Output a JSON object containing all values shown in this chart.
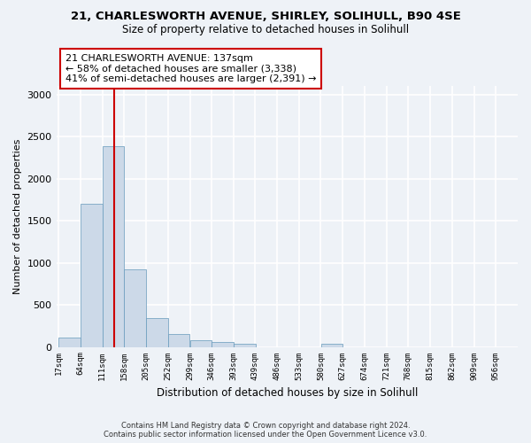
{
  "title": "21, CHARLESWORTH AVENUE, SHIRLEY, SOLIHULL, B90 4SE",
  "subtitle": "Size of property relative to detached houses in Solihull",
  "xlabel": "Distribution of detached houses by size in Solihull",
  "ylabel": "Number of detached properties",
  "footer_line1": "Contains HM Land Registry data © Crown copyright and database right 2024.",
  "footer_line2": "Contains public sector information licensed under the Open Government Licence v3.0.",
  "annotation_line1": "21 CHARLESWORTH AVENUE: 137sqm",
  "annotation_line2": "← 58% of detached houses are smaller (3,338)",
  "annotation_line3": "41% of semi-detached houses are larger (2,391) →",
  "bar_color": "#ccd9e8",
  "bar_edge_color": "#6699bb",
  "red_line_color": "#cc0000",
  "red_line_x": 137,
  "bin_edges": [
    17,
    64,
    111,
    158,
    205,
    252,
    299,
    346,
    393,
    439,
    486,
    533,
    580,
    627,
    674,
    721,
    768,
    815,
    862,
    909,
    956
  ],
  "bar_heights": [
    110,
    1700,
    2380,
    920,
    340,
    150,
    80,
    55,
    40,
    0,
    0,
    0,
    35,
    0,
    0,
    0,
    0,
    0,
    0,
    0
  ],
  "ylim": [
    0,
    3100
  ],
  "yticks": [
    0,
    500,
    1000,
    1500,
    2000,
    2500,
    3000
  ],
  "background_color": "#eef2f7",
  "grid_color": "#ffffff",
  "annotation_box_facecolor": "#ffffff",
  "annotation_box_edgecolor": "#cc0000"
}
